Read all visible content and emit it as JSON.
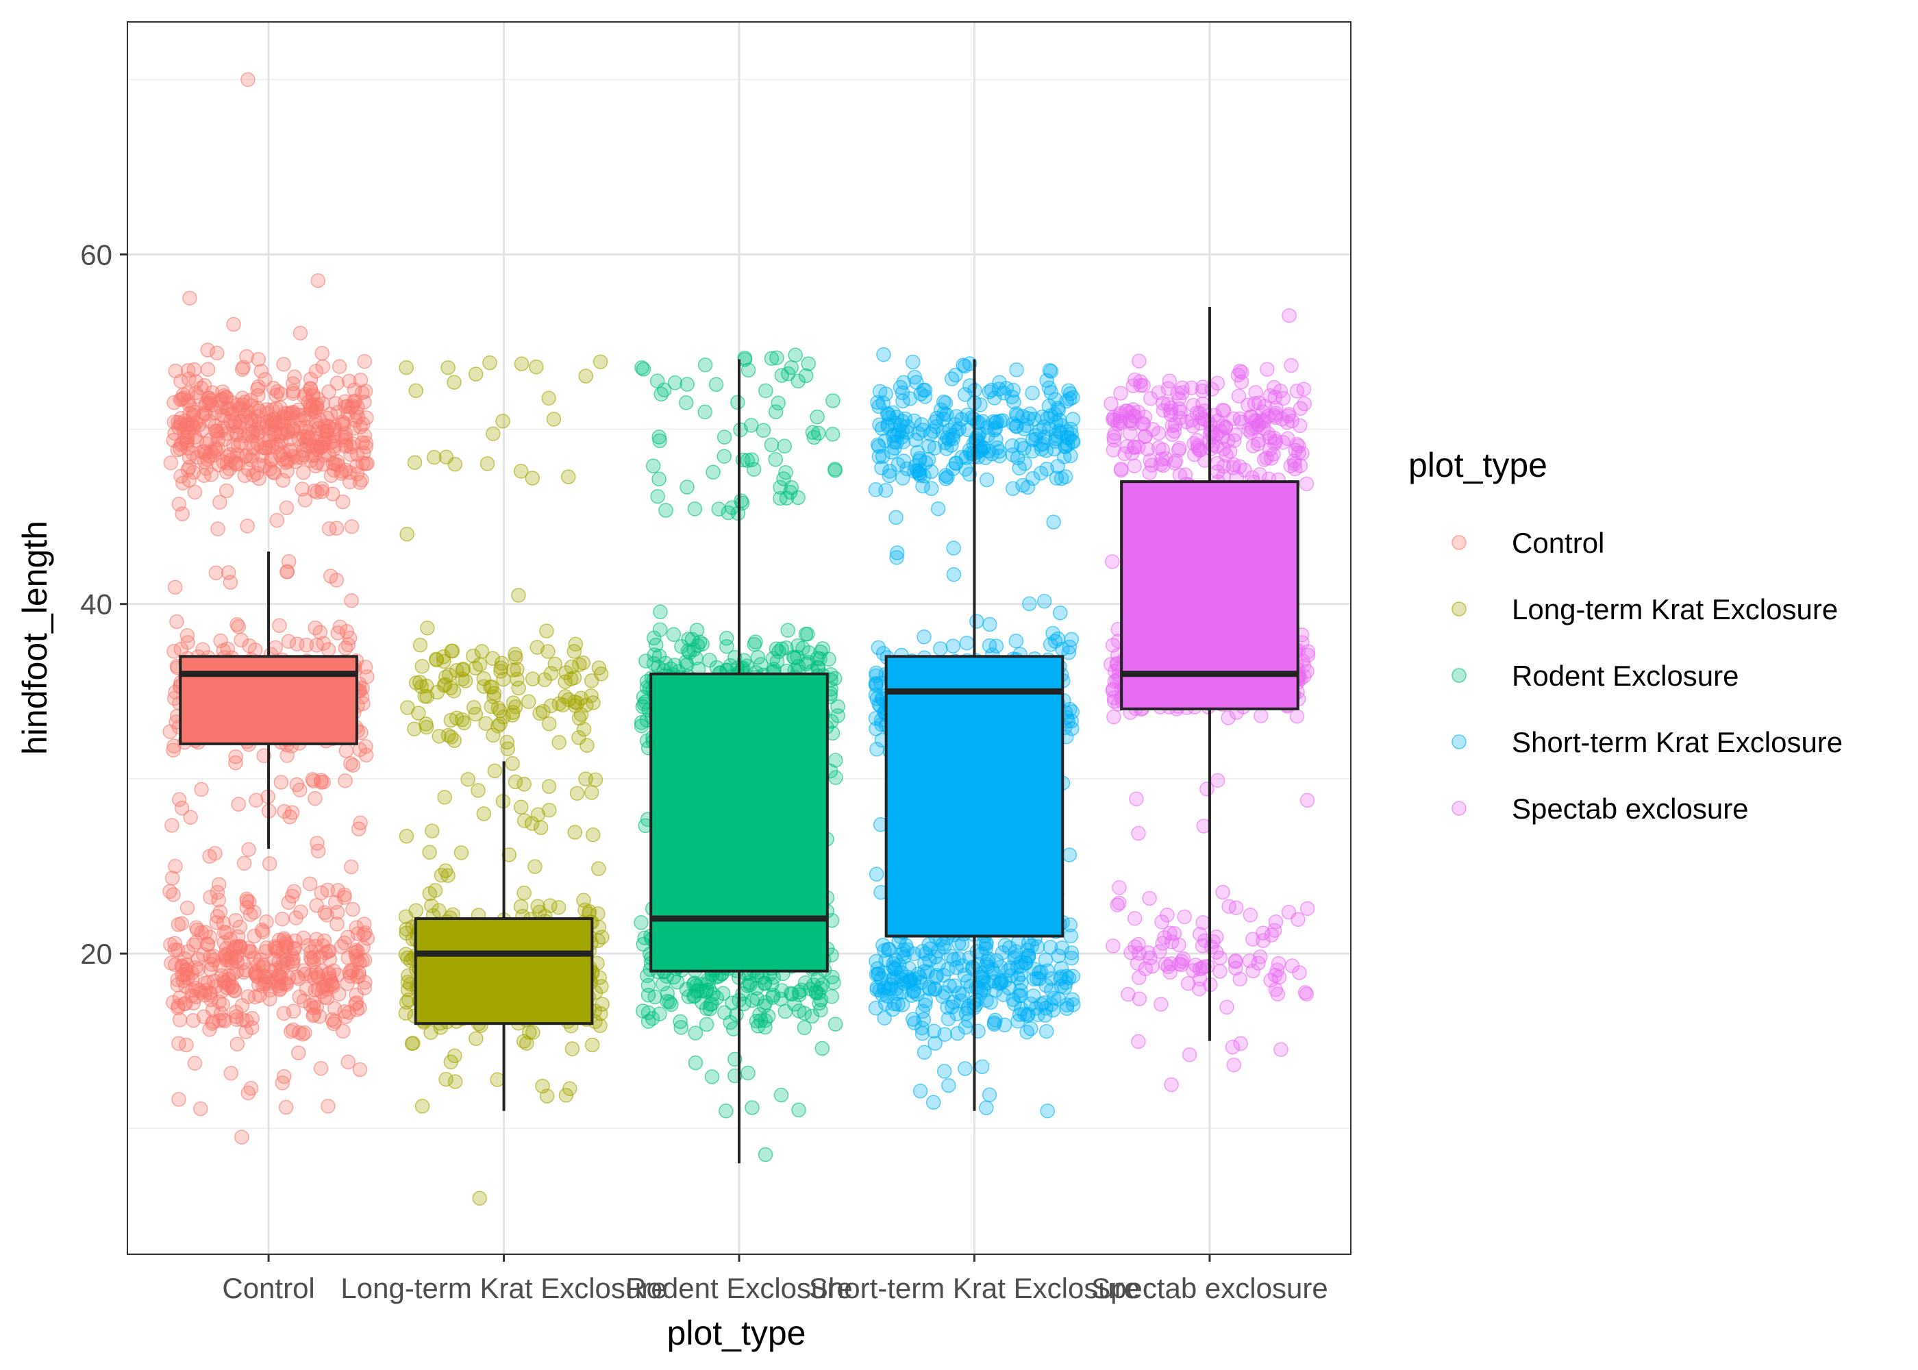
{
  "chart_data": {
    "type": "boxplot",
    "xlabel": "plot_type",
    "ylabel": "hindfoot_length",
    "ylim": [
      2.8,
      73.3
    ],
    "yticks": [
      20,
      40,
      60
    ],
    "grid": true,
    "legend": {
      "title": "plot_type",
      "position": "right",
      "entries": [
        "Control",
        "Long-term Krat Exclosure",
        "Rodent Exclosure",
        "Short-term Krat Exclosure",
        "Spectab exclosure"
      ]
    },
    "categories": [
      "Control",
      "Long-term Krat Exclosure",
      "Rodent Exclosure",
      "Short-term Krat Exclosure",
      "Spectab exclosure"
    ],
    "colors": [
      "#F8766D",
      "#A3A500",
      "#00BF7D",
      "#00B0F6",
      "#E76BF3"
    ],
    "boxes": [
      {
        "whisker_low": 26,
        "q1": 32,
        "median": 36,
        "q3": 37,
        "whisker_high": 43
      },
      {
        "whisker_low": 11,
        "q1": 16,
        "median": 20,
        "q3": 22,
        "whisker_high": 31
      },
      {
        "whisker_low": 8,
        "q1": 19,
        "median": 22,
        "q3": 36,
        "whisker_high": 54
      },
      {
        "whisker_low": 11,
        "q1": 21,
        "median": 35,
        "q3": 37,
        "whisker_high": 54
      },
      {
        "whisker_low": 15,
        "q1": 34,
        "median": 36,
        "q3": 47,
        "whisker_high": 57
      }
    ],
    "points": [
      {
        "clusters": [
          {
            "center": 50,
            "spread": 4,
            "n": 420
          },
          {
            "center": 35,
            "spread": 4,
            "n": 300
          },
          {
            "center": 19,
            "spread": 4,
            "n": 340
          }
        ],
        "sparse": [
          {
            "min": 23,
            "max": 30,
            "n": 40
          },
          {
            "min": 40,
            "max": 46,
            "n": 20
          },
          {
            "min": 11,
            "max": 14,
            "n": 12
          }
        ],
        "outliers": [
          70,
          58.5,
          57.5,
          56,
          55.5,
          9.5
        ]
      },
      {
        "clusters": [
          {
            "center": 35,
            "spread": 3.5,
            "n": 120
          },
          {
            "center": 19,
            "spread": 4,
            "n": 420
          }
        ],
        "sparse": [
          {
            "min": 47,
            "max": 54,
            "n": 22
          },
          {
            "min": 24,
            "max": 30,
            "n": 30
          },
          {
            "min": 11,
            "max": 13,
            "n": 8
          }
        ],
        "outliers": [
          6,
          44,
          40.5
        ]
      },
      {
        "clusters": [
          {
            "center": 35,
            "spread": 3.5,
            "n": 300
          },
          {
            "center": 19,
            "spread": 4,
            "n": 260
          }
        ],
        "sparse": [
          {
            "min": 45,
            "max": 54.5,
            "n": 70
          },
          {
            "min": 24,
            "max": 31,
            "n": 14
          },
          {
            "min": 11,
            "max": 14,
            "n": 8
          }
        ],
        "outliers": [
          8.5,
          11
        ]
      },
      {
        "clusters": [
          {
            "center": 50,
            "spread": 3.5,
            "n": 260
          },
          {
            "center": 34.5,
            "spread": 4,
            "n": 320
          },
          {
            "center": 19,
            "spread": 4,
            "n": 300
          }
        ],
        "sparse": [
          {
            "min": 23,
            "max": 30,
            "n": 24
          },
          {
            "min": 40,
            "max": 45,
            "n": 8
          },
          {
            "min": 11,
            "max": 14,
            "n": 8
          }
        ],
        "outliers": [
          11
        ]
      },
      {
        "clusters": [
          {
            "center": 50,
            "spread": 3.5,
            "n": 230
          },
          {
            "center": 36,
            "spread": 2.5,
            "n": 260
          },
          {
            "center": 20,
            "spread": 3.2,
            "n": 90
          }
        ],
        "sparse": [
          {
            "min": 40,
            "max": 46,
            "n": 12
          },
          {
            "min": 26,
            "max": 32,
            "n": 6
          },
          {
            "min": 13,
            "max": 16,
            "n": 6
          }
        ],
        "outliers": [
          56.5,
          12.5
        ]
      }
    ]
  }
}
